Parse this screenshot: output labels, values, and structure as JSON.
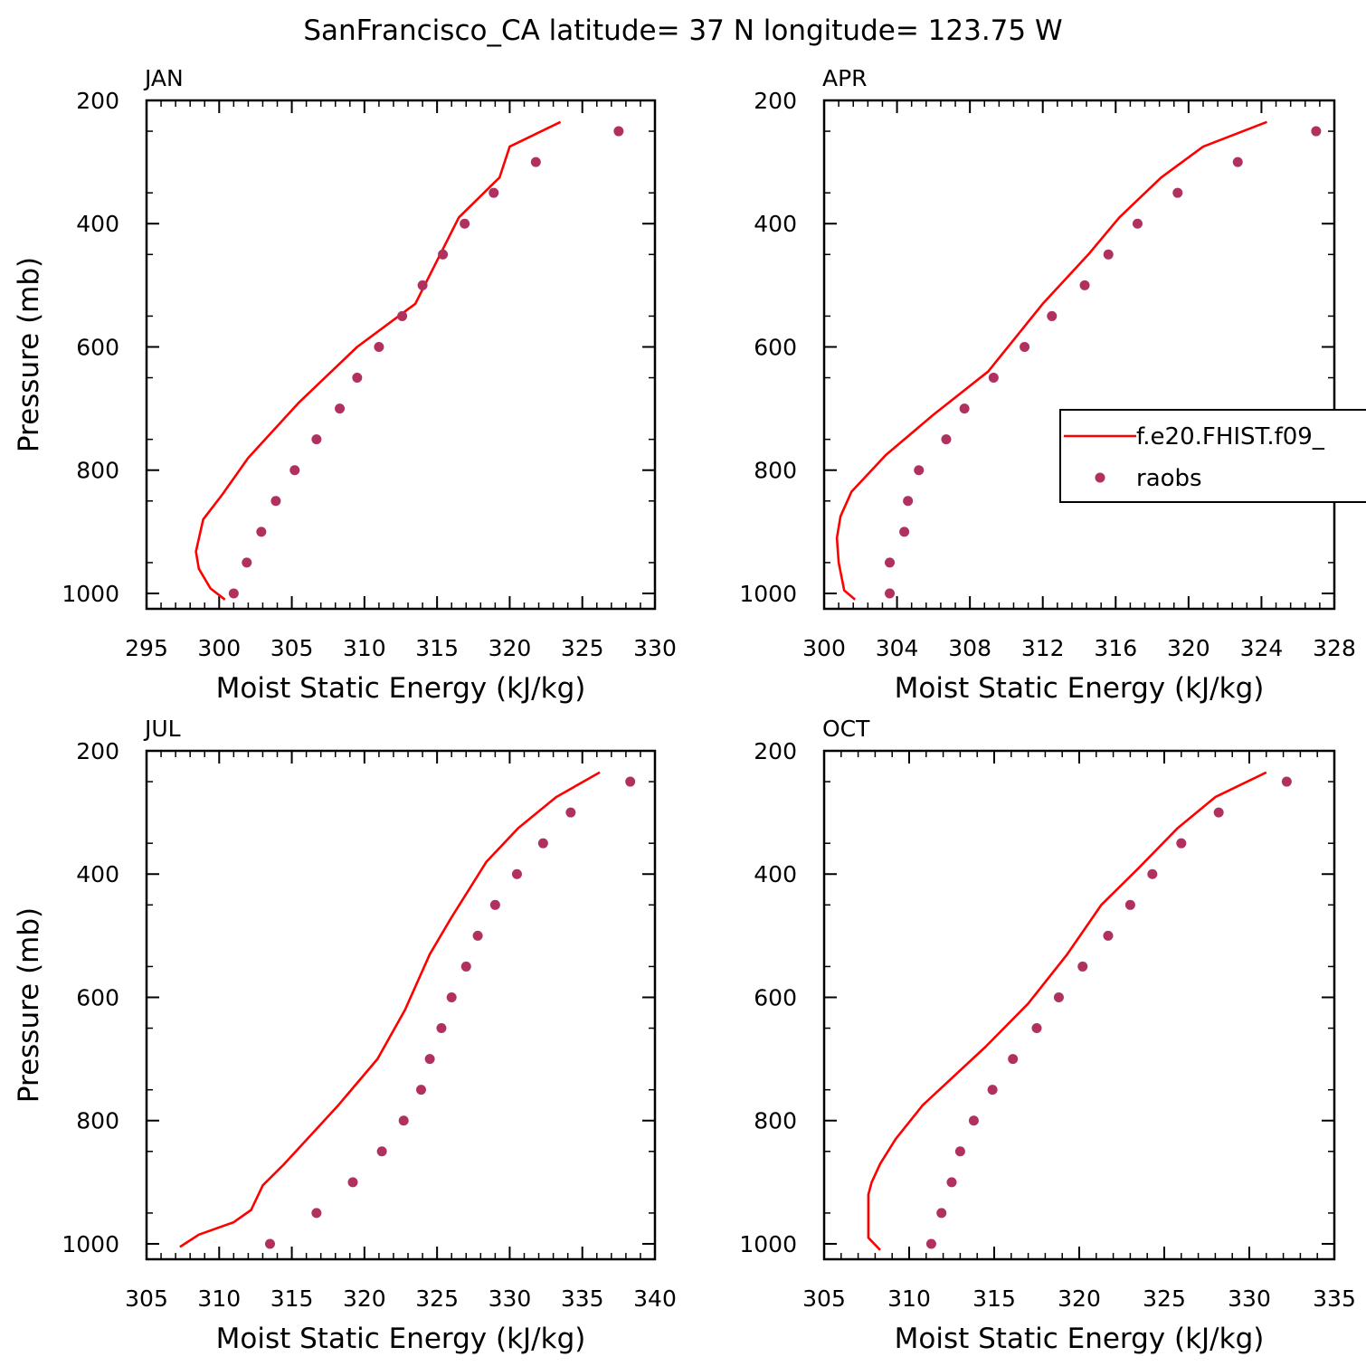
{
  "title": "SanFrancisco_CA  latitude= 37 N longitude= 123.75 W",
  "colors": {
    "model_line": "#ff0000",
    "obs_marker": "#b03060",
    "axes": "#000000"
  },
  "legend": {
    "placement": "right-middle of APR panel (clipped)",
    "entries": [
      "f.e20.FHIST.f09_",
      "raobs"
    ]
  },
  "chart_data": [
    {
      "type": "line",
      "panel": "JAN",
      "xlabel": "Moist Static Energy (kJ/kg)",
      "ylabel": "Pressure (mb)",
      "xlim": [
        295,
        330
      ],
      "xticks": [
        295,
        300,
        305,
        310,
        315,
        320,
        325,
        330
      ],
      "ylim": [
        1025,
        200
      ],
      "yticks": [
        200,
        400,
        600,
        800,
        1000
      ],
      "series": [
        {
          "name": "f.e20.FHIST.f09_",
          "style": "line",
          "x": [
            300.4,
            299.4,
            298.6,
            298.4,
            298.9,
            300.2,
            302.0,
            305.5,
            309.5,
            313.5,
            316.5,
            319.3,
            320.0,
            323.5
          ],
          "y": [
            1010,
            992,
            960,
            932,
            880,
            840,
            780,
            690,
            600,
            530,
            390,
            325,
            275,
            235
          ]
        },
        {
          "name": "raobs",
          "style": "markers",
          "x": [
            301.0,
            301.9,
            302.9,
            303.9,
            305.2,
            306.7,
            308.3,
            309.5,
            311.0,
            312.6,
            314.0,
            315.4,
            316.9,
            318.9,
            321.8,
            327.5
          ],
          "y": [
            1000,
            950,
            900,
            850,
            800,
            750,
            700,
            650,
            600,
            550,
            500,
            450,
            400,
            350,
            300,
            250
          ]
        }
      ]
    },
    {
      "type": "line",
      "panel": "APR",
      "xlabel": "Moist Static Energy (kJ/kg)",
      "ylabel": "",
      "xlim": [
        300,
        328
      ],
      "xticks": [
        300,
        304,
        308,
        312,
        316,
        320,
        324,
        328
      ],
      "ylim": [
        1025,
        200
      ],
      "yticks": [
        200,
        400,
        600,
        800,
        1000
      ],
      "series": [
        {
          "name": "f.e20.FHIST.f09_",
          "style": "line",
          "x": [
            301.7,
            301.1,
            300.8,
            300.7,
            300.9,
            301.5,
            303.4,
            306.0,
            309.0,
            312.0,
            314.5,
            316.2,
            318.5,
            320.8,
            324.3
          ],
          "y": [
            1010,
            995,
            950,
            910,
            875,
            835,
            775,
            710,
            640,
            530,
            450,
            390,
            325,
            275,
            235
          ]
        },
        {
          "name": "raobs",
          "style": "markers",
          "x": [
            303.6,
            303.6,
            304.4,
            304.6,
            305.2,
            306.7,
            307.7,
            309.3,
            311.0,
            312.5,
            314.3,
            315.6,
            317.2,
            319.4,
            322.7,
            327.0
          ],
          "y": [
            1000,
            950,
            900,
            850,
            800,
            750,
            700,
            650,
            600,
            550,
            500,
            450,
            400,
            350,
            300,
            250
          ]
        }
      ]
    },
    {
      "type": "line",
      "panel": "JUL",
      "xlabel": "Moist Static Energy (kJ/kg)",
      "ylabel": "Pressure (mb)",
      "xlim": [
        305,
        340
      ],
      "xticks": [
        305,
        310,
        315,
        320,
        325,
        330,
        335,
        340
      ],
      "ylim": [
        1025,
        200
      ],
      "yticks": [
        200,
        400,
        600,
        800,
        1000
      ],
      "series": [
        {
          "name": "f.e20.FHIST.f09_",
          "style": "line",
          "x": [
            307.3,
            308.6,
            311.0,
            312.2,
            313.0,
            314.5,
            318.2,
            320.9,
            322.8,
            324.5,
            326.0,
            328.4,
            330.6,
            333.2,
            336.2
          ],
          "y": [
            1005,
            985,
            965,
            945,
            905,
            870,
            775,
            700,
            620,
            530,
            470,
            380,
            325,
            275,
            235
          ]
        },
        {
          "name": "raobs",
          "style": "markers",
          "x": [
            313.5,
            316.7,
            319.2,
            321.2,
            322.7,
            323.9,
            324.5,
            325.3,
            326.0,
            327.0,
            327.8,
            329.0,
            330.5,
            332.3,
            334.2,
            338.3
          ],
          "y": [
            1000,
            950,
            900,
            850,
            800,
            750,
            700,
            650,
            600,
            550,
            500,
            450,
            400,
            350,
            300,
            250
          ]
        }
      ]
    },
    {
      "type": "line",
      "panel": "OCT",
      "xlabel": "Moist Static Energy (kJ/kg)",
      "ylabel": "",
      "xlim": [
        305,
        335
      ],
      "xticks": [
        305,
        310,
        315,
        320,
        325,
        330,
        335
      ],
      "ylim": [
        1025,
        200
      ],
      "yticks": [
        200,
        400,
        600,
        800,
        1000
      ],
      "series": [
        {
          "name": "f.e20.FHIST.f09_",
          "style": "line",
          "x": [
            308.3,
            307.6,
            307.6,
            307.6,
            307.8,
            308.3,
            309.2,
            310.8,
            314.5,
            317.0,
            319.3,
            321.3,
            323.5,
            325.8,
            328.0,
            331.0
          ],
          "y": [
            1010,
            990,
            950,
            920,
            900,
            870,
            830,
            775,
            680,
            610,
            530,
            450,
            390,
            325,
            275,
            235
          ]
        },
        {
          "name": "raobs",
          "style": "markers",
          "x": [
            311.3,
            311.9,
            312.5,
            313.0,
            313.8,
            314.9,
            316.1,
            317.5,
            318.8,
            320.2,
            321.7,
            323.0,
            324.3,
            326.0,
            328.2,
            332.2
          ],
          "y": [
            1000,
            950,
            900,
            850,
            800,
            750,
            700,
            650,
            600,
            550,
            500,
            450,
            400,
            350,
            300,
            250
          ]
        }
      ]
    }
  ]
}
